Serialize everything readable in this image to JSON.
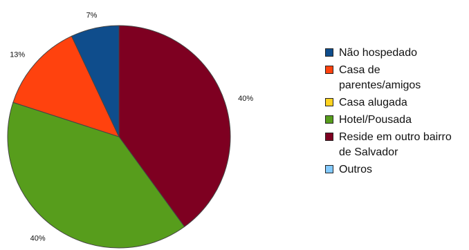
{
  "chart_data": {
    "type": "pie",
    "title": "",
    "slices": [
      {
        "label": "Não hospedado",
        "value": 7,
        "display": "7%",
        "color": "#0f4d8c"
      },
      {
        "label": "Casa de parentes/amigos",
        "value": 13,
        "display": "13%",
        "color": "#ff420e"
      },
      {
        "label": "Casa alugada",
        "value": 0,
        "display": "",
        "color": "#ffd320"
      },
      {
        "label": "Hotel/Pousada",
        "value": 40,
        "display": "40%",
        "color": "#579d1c"
      },
      {
        "label": "Reside em outro bairro de Salvador",
        "value": 40,
        "display": "40%",
        "color": "#7e0021"
      },
      {
        "label": "Outros",
        "value": 0,
        "display": "",
        "color": "#83caff"
      }
    ],
    "legend_position": "right"
  }
}
